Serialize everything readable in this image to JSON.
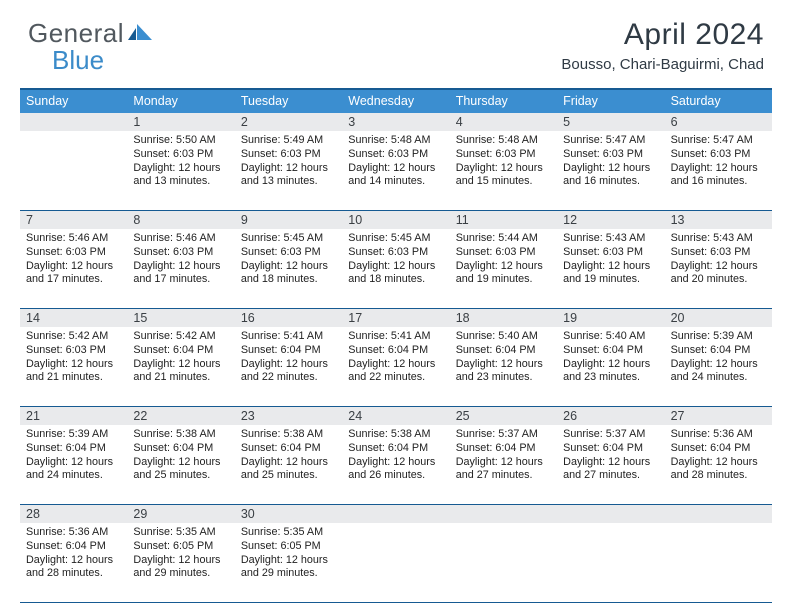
{
  "logo": {
    "part1": "General",
    "part2": "Blue",
    "text_color": "#51585e",
    "blue_color": "#3b8bc9"
  },
  "title": "April 2024",
  "location": "Bousso, Chari-Baguirmi, Chad",
  "colors": {
    "header_bar": "#3b8ed0",
    "header_border": "#165a92",
    "daynum_bg": "#e9eaec",
    "text": "#222222"
  },
  "days_of_week": [
    "Sunday",
    "Monday",
    "Tuesday",
    "Wednesday",
    "Thursday",
    "Friday",
    "Saturday"
  ],
  "weeks": [
    [
      {
        "n": "",
        "lines": []
      },
      {
        "n": "1",
        "lines": [
          "Sunrise: 5:50 AM",
          "Sunset: 6:03 PM",
          "Daylight: 12 hours and 13 minutes."
        ]
      },
      {
        "n": "2",
        "lines": [
          "Sunrise: 5:49 AM",
          "Sunset: 6:03 PM",
          "Daylight: 12 hours and 13 minutes."
        ]
      },
      {
        "n": "3",
        "lines": [
          "Sunrise: 5:48 AM",
          "Sunset: 6:03 PM",
          "Daylight: 12 hours and 14 minutes."
        ]
      },
      {
        "n": "4",
        "lines": [
          "Sunrise: 5:48 AM",
          "Sunset: 6:03 PM",
          "Daylight: 12 hours and 15 minutes."
        ]
      },
      {
        "n": "5",
        "lines": [
          "Sunrise: 5:47 AM",
          "Sunset: 6:03 PM",
          "Daylight: 12 hours and 16 minutes."
        ]
      },
      {
        "n": "6",
        "lines": [
          "Sunrise: 5:47 AM",
          "Sunset: 6:03 PM",
          "Daylight: 12 hours and 16 minutes."
        ]
      }
    ],
    [
      {
        "n": "7",
        "lines": [
          "Sunrise: 5:46 AM",
          "Sunset: 6:03 PM",
          "Daylight: 12 hours and 17 minutes."
        ]
      },
      {
        "n": "8",
        "lines": [
          "Sunrise: 5:46 AM",
          "Sunset: 6:03 PM",
          "Daylight: 12 hours and 17 minutes."
        ]
      },
      {
        "n": "9",
        "lines": [
          "Sunrise: 5:45 AM",
          "Sunset: 6:03 PM",
          "Daylight: 12 hours and 18 minutes."
        ]
      },
      {
        "n": "10",
        "lines": [
          "Sunrise: 5:45 AM",
          "Sunset: 6:03 PM",
          "Daylight: 12 hours and 18 minutes."
        ]
      },
      {
        "n": "11",
        "lines": [
          "Sunrise: 5:44 AM",
          "Sunset: 6:03 PM",
          "Daylight: 12 hours and 19 minutes."
        ]
      },
      {
        "n": "12",
        "lines": [
          "Sunrise: 5:43 AM",
          "Sunset: 6:03 PM",
          "Daylight: 12 hours and 19 minutes."
        ]
      },
      {
        "n": "13",
        "lines": [
          "Sunrise: 5:43 AM",
          "Sunset: 6:03 PM",
          "Daylight: 12 hours and 20 minutes."
        ]
      }
    ],
    [
      {
        "n": "14",
        "lines": [
          "Sunrise: 5:42 AM",
          "Sunset: 6:03 PM",
          "Daylight: 12 hours and 21 minutes."
        ]
      },
      {
        "n": "15",
        "lines": [
          "Sunrise: 5:42 AM",
          "Sunset: 6:04 PM",
          "Daylight: 12 hours and 21 minutes."
        ]
      },
      {
        "n": "16",
        "lines": [
          "Sunrise: 5:41 AM",
          "Sunset: 6:04 PM",
          "Daylight: 12 hours and 22 minutes."
        ]
      },
      {
        "n": "17",
        "lines": [
          "Sunrise: 5:41 AM",
          "Sunset: 6:04 PM",
          "Daylight: 12 hours and 22 minutes."
        ]
      },
      {
        "n": "18",
        "lines": [
          "Sunrise: 5:40 AM",
          "Sunset: 6:04 PM",
          "Daylight: 12 hours and 23 minutes."
        ]
      },
      {
        "n": "19",
        "lines": [
          "Sunrise: 5:40 AM",
          "Sunset: 6:04 PM",
          "Daylight: 12 hours and 23 minutes."
        ]
      },
      {
        "n": "20",
        "lines": [
          "Sunrise: 5:39 AM",
          "Sunset: 6:04 PM",
          "Daylight: 12 hours and 24 minutes."
        ]
      }
    ],
    [
      {
        "n": "21",
        "lines": [
          "Sunrise: 5:39 AM",
          "Sunset: 6:04 PM",
          "Daylight: 12 hours and 24 minutes."
        ]
      },
      {
        "n": "22",
        "lines": [
          "Sunrise: 5:38 AM",
          "Sunset: 6:04 PM",
          "Daylight: 12 hours and 25 minutes."
        ]
      },
      {
        "n": "23",
        "lines": [
          "Sunrise: 5:38 AM",
          "Sunset: 6:04 PM",
          "Daylight: 12 hours and 25 minutes."
        ]
      },
      {
        "n": "24",
        "lines": [
          "Sunrise: 5:38 AM",
          "Sunset: 6:04 PM",
          "Daylight: 12 hours and 26 minutes."
        ]
      },
      {
        "n": "25",
        "lines": [
          "Sunrise: 5:37 AM",
          "Sunset: 6:04 PM",
          "Daylight: 12 hours and 27 minutes."
        ]
      },
      {
        "n": "26",
        "lines": [
          "Sunrise: 5:37 AM",
          "Sunset: 6:04 PM",
          "Daylight: 12 hours and 27 minutes."
        ]
      },
      {
        "n": "27",
        "lines": [
          "Sunrise: 5:36 AM",
          "Sunset: 6:04 PM",
          "Daylight: 12 hours and 28 minutes."
        ]
      }
    ],
    [
      {
        "n": "28",
        "lines": [
          "Sunrise: 5:36 AM",
          "Sunset: 6:04 PM",
          "Daylight: 12 hours and 28 minutes."
        ]
      },
      {
        "n": "29",
        "lines": [
          "Sunrise: 5:35 AM",
          "Sunset: 6:05 PM",
          "Daylight: 12 hours and 29 minutes."
        ]
      },
      {
        "n": "30",
        "lines": [
          "Sunrise: 5:35 AM",
          "Sunset: 6:05 PM",
          "Daylight: 12 hours and 29 minutes."
        ]
      },
      {
        "n": "",
        "lines": []
      },
      {
        "n": "",
        "lines": []
      },
      {
        "n": "",
        "lines": []
      },
      {
        "n": "",
        "lines": []
      }
    ]
  ]
}
